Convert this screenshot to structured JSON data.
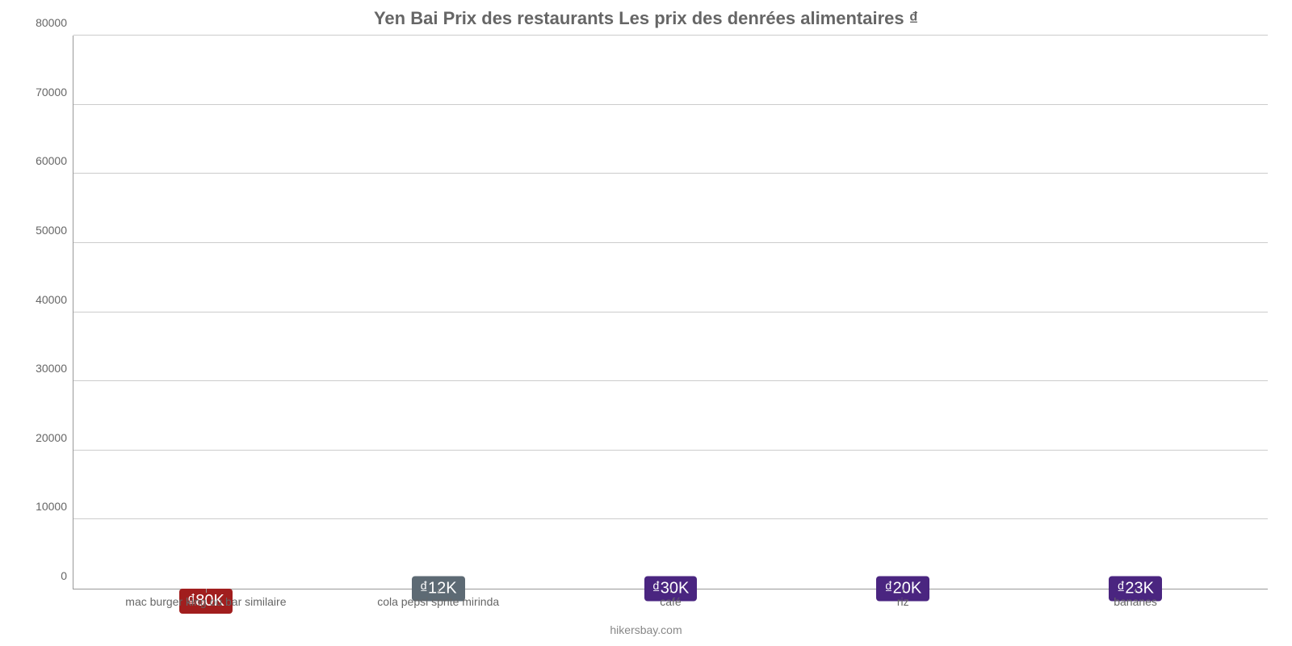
{
  "chart": {
    "type": "bar",
    "title": "Yen Bai Prix des restaurants Les prix des denrées alimentaires ₫",
    "title_fontsize": 22,
    "title_color": "#666666",
    "background_color": "#ffffff",
    "grid_color": "#cccccc",
    "axis_color": "#999999",
    "label_color": "#666666",
    "xlabel_fontsize": 14,
    "ylabel_fontsize": 14,
    "ylim": [
      0,
      80000
    ],
    "ytick_step": 10000,
    "yticks": [
      {
        "value": 0,
        "label": "0"
      },
      {
        "value": 10000,
        "label": "10000"
      },
      {
        "value": 20000,
        "label": "20000"
      },
      {
        "value": 30000,
        "label": "30000"
      },
      {
        "value": 40000,
        "label": "40000"
      },
      {
        "value": 50000,
        "label": "50000"
      },
      {
        "value": 60000,
        "label": "60000"
      },
      {
        "value": 70000,
        "label": "70000"
      },
      {
        "value": 80000,
        "label": "80000"
      }
    ],
    "bar_width_pct": 80,
    "bars": [
      {
        "category": "mac burger king ou bar similaire",
        "value": 80000,
        "value_label": "₫80K",
        "bar_color": "#e52d38",
        "badge_bg": "#a11e1e",
        "badge_text_color": "#ffffff"
      },
      {
        "category": "cola pepsi sprite mirinda",
        "value": 12000,
        "value_label": "₫12K",
        "bar_color": "#2d8bdd",
        "badge_bg": "#5d6a74",
        "badge_text_color": "#ffffff"
      },
      {
        "category": "café",
        "value": 30000,
        "value_label": "₫30K",
        "bar_color": "#7e3adf",
        "badge_bg": "#4a2580",
        "badge_text_color": "#ffffff"
      },
      {
        "category": "riz",
        "value": 20000,
        "value_label": "₫20K",
        "bar_color": "#7e3adf",
        "badge_bg": "#4a2580",
        "badge_text_color": "#ffffff"
      },
      {
        "category": "bananes",
        "value": 23000,
        "value_label": "₫23K",
        "bar_color": "#7e3adf",
        "badge_bg": "#4a2580",
        "badge_text_color": "#ffffff"
      }
    ],
    "credit": "hikersbay.com",
    "credit_color": "#888888"
  }
}
